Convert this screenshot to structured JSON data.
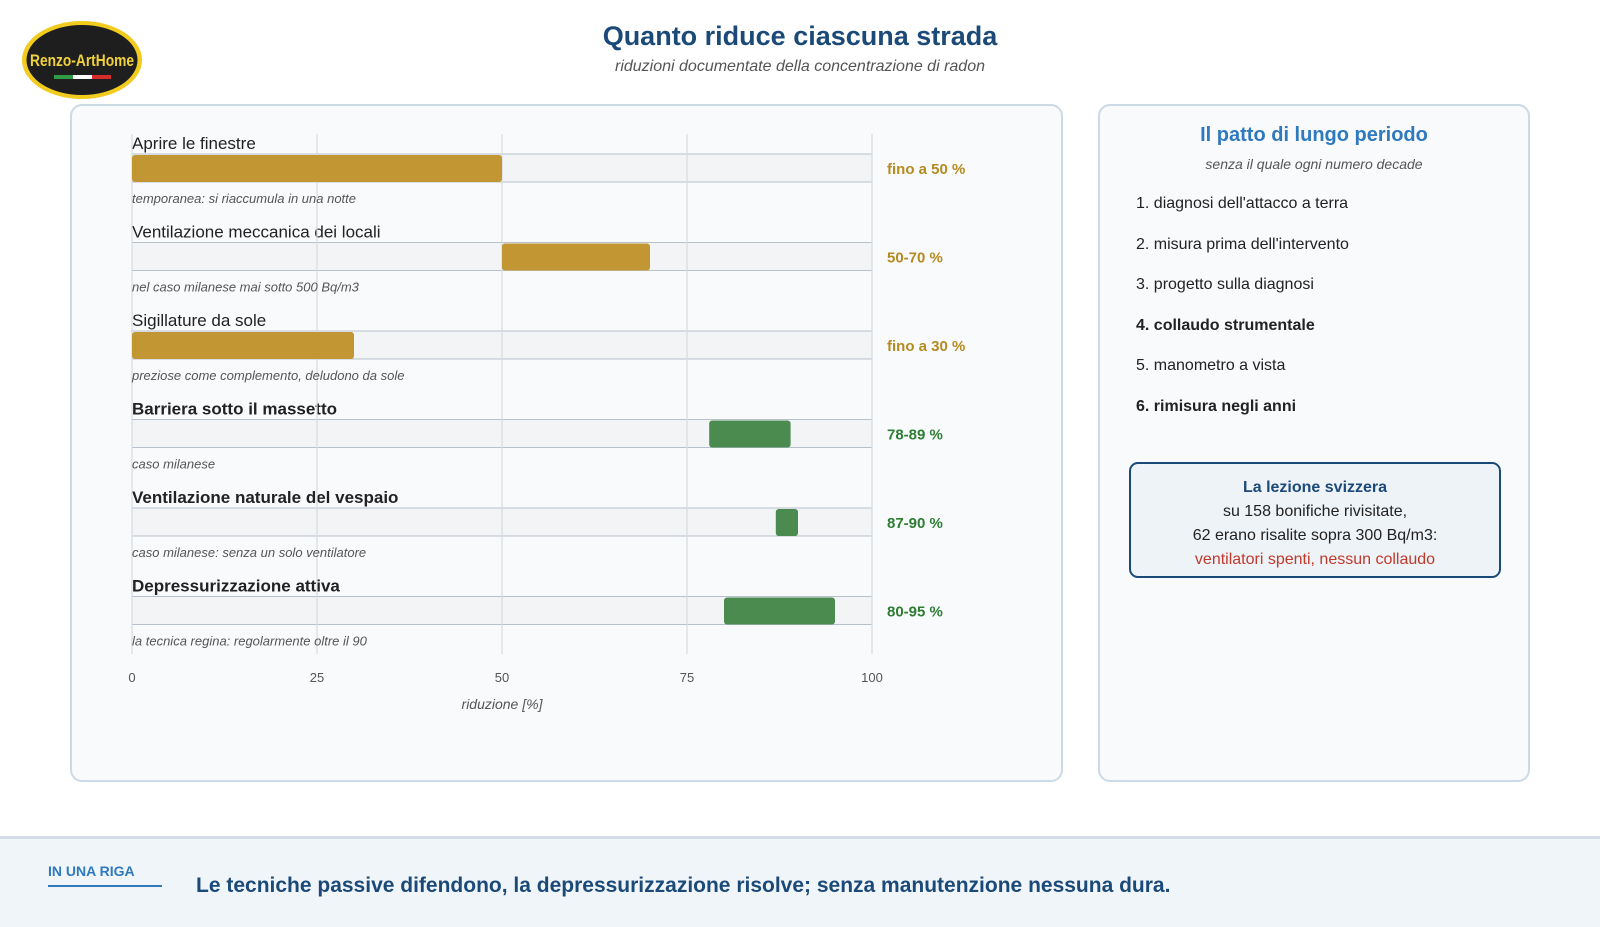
{
  "logo": {
    "text": "Renzo-ArtHome"
  },
  "header": {
    "title": "Quanto riduce ciascuna strada",
    "subtitle": "riduzioni documentate della concentrazione di radon"
  },
  "colors": {
    "passive": "#c29733",
    "active": "#4b8b50",
    "passive_text": "#b58a1f",
    "active_text": "#2e7d32"
  },
  "chart_data": {
    "type": "bar",
    "xlabel": "riduzione [%]",
    "xlim": [
      0,
      100
    ],
    "xticks": [
      0,
      25,
      50,
      75,
      100
    ],
    "grid": true,
    "rows": [
      {
        "label": "Aprire le finestre",
        "bold": false,
        "note": "temporanea: si riaccumula in una notte",
        "from": 0,
        "to": 50,
        "value_label": "fino a 50 %",
        "group": "passive"
      },
      {
        "label": "Ventilazione meccanica dei locali",
        "bold": false,
        "note": "nel caso milanese mai sotto 500 Bq/m3",
        "from": 50,
        "to": 70,
        "value_label": "50-70 %",
        "group": "passive"
      },
      {
        "label": "Sigillature da sole",
        "bold": false,
        "note": "preziose come complemento, deludono da sole",
        "from": 0,
        "to": 30,
        "value_label": "fino a 30 %",
        "group": "passive"
      },
      {
        "label": "Barriera sotto il massetto",
        "bold": true,
        "note": "caso milanese",
        "from": 78,
        "to": 89,
        "value_label": "78-89 %",
        "group": "active"
      },
      {
        "label": "Ventilazione naturale del vespaio",
        "bold": true,
        "note": "caso milanese: senza un solo ventilatore",
        "from": 87,
        "to": 90,
        "value_label": "87-90 %",
        "group": "active"
      },
      {
        "label": "Depressurizzazione attiva",
        "bold": true,
        "note": "la tecnica regina: regolarmente oltre il 90",
        "from": 80,
        "to": 95,
        "value_label": "80-95 %",
        "group": "active"
      }
    ]
  },
  "side": {
    "title": "Il patto di lungo periodo",
    "subtitle": "senza il quale ogni numero decade",
    "steps": [
      {
        "text": "1. diagnosi dell'attacco a terra",
        "bold": false
      },
      {
        "text": "2. misura prima dell'intervento",
        "bold": false
      },
      {
        "text": "3. progetto sulla diagnosi",
        "bold": false
      },
      {
        "text": "4. collaudo strumentale",
        "bold": true
      },
      {
        "text": "5. manometro a vista",
        "bold": false
      },
      {
        "text": "6. rimisura negli anni",
        "bold": true
      }
    ],
    "swiss": {
      "heading": "La lezione svizzera",
      "line1": "su 158 bonifiche rivisitate,",
      "line2": "62 erano risalite sopra 300 Bq/m3:",
      "line3": "ventilatori spenti, nessun collaudo"
    }
  },
  "footer": {
    "tag": "IN UNA RIGA",
    "text": "Le tecniche passive difendono, la depressurizzazione risolve; senza manutenzione nessuna dura."
  }
}
